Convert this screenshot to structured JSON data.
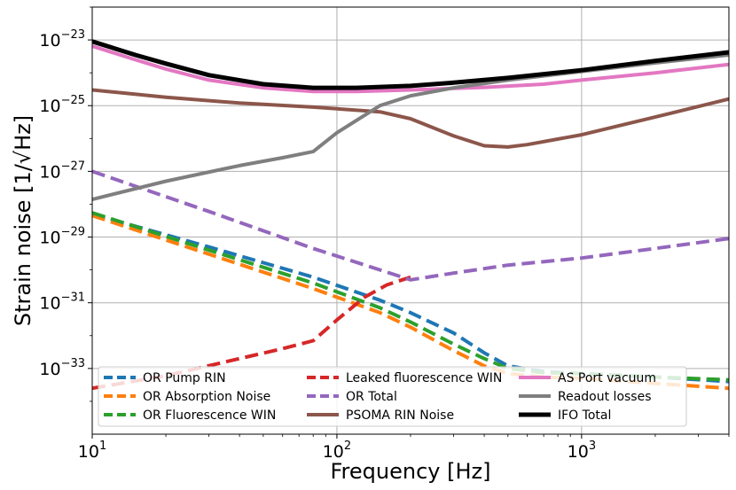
{
  "chart_data": {
    "type": "line",
    "xlabel": "Frequency [Hz]",
    "ylabel": "Strain noise [1/√Hz]",
    "xscale": "log",
    "yscale": "log",
    "xlim": [
      10,
      4000
    ],
    "ylim": [
      1e-35,
      1e-22
    ],
    "grid": true,
    "legend_position": "lower center",
    "xticks": [
      {
        "value": 10,
        "base": "10",
        "exp": "1"
      },
      {
        "value": 100,
        "base": "10",
        "exp": "2"
      },
      {
        "value": 1000,
        "base": "10",
        "exp": "3"
      }
    ],
    "yticks": [
      {
        "value": 1e-23,
        "base": "10",
        "exp": "−23"
      },
      {
        "value": 1e-25,
        "base": "10",
        "exp": "−25"
      },
      {
        "value": 1e-27,
        "base": "10",
        "exp": "−27"
      },
      {
        "value": 1e-29,
        "base": "10",
        "exp": "−29"
      },
      {
        "value": 1e-31,
        "base": "10",
        "exp": "−31"
      },
      {
        "value": 1e-33,
        "base": "10",
        "exp": "−33"
      }
    ],
    "series": [
      {
        "name": "OR Pump RIN",
        "color": "#1f77b4",
        "dashed": true,
        "x": [
          10,
          30,
          80,
          150,
          200,
          300,
          400,
          500,
          700,
          1000,
          2000,
          4000
        ],
        "y": [
          5e-29,
          5e-30,
          6e-31,
          1.2e-31,
          5e-32,
          1.2e-32,
          3e-33,
          1.2e-33,
          8e-34,
          7e-34,
          5.5e-34,
          4e-34
        ]
      },
      {
        "name": "OR Absorption Noise",
        "color": "#ff7f0e",
        "dashed": true,
        "x": [
          10,
          30,
          80,
          150,
          200,
          300,
          400,
          500,
          700,
          1000,
          2000,
          4000
        ],
        "y": [
          4.5e-29,
          3e-30,
          2.7e-31,
          5e-32,
          1.8e-32,
          3.5e-33,
          1.2e-33,
          7e-34,
          5.5e-34,
          5e-34,
          3.5e-34,
          2.5e-34
        ]
      },
      {
        "name": "OR Fluorescence WIN",
        "color": "#2ca02c",
        "dashed": true,
        "x": [
          10,
          30,
          80,
          150,
          200,
          300,
          400,
          500,
          700,
          1000,
          2000,
          4000
        ],
        "y": [
          5.5e-29,
          4e-30,
          4e-31,
          7e-32,
          2.6e-32,
          5.5e-33,
          2e-33,
          1e-33,
          7.5e-34,
          7e-34,
          5.5e-34,
          4.5e-34
        ]
      },
      {
        "name": "Leaked fluorescence WIN",
        "color": "#d62728",
        "dashed": true,
        "x": [
          10,
          20,
          40,
          60,
          80,
          100,
          130,
          160,
          200
        ],
        "y": [
          2.5e-34,
          6e-34,
          2e-33,
          4e-33,
          7e-33,
          3e-32,
          1.5e-31,
          3.5e-31,
          6e-31
        ]
      },
      {
        "name": "OR Total",
        "color": "#9467bd",
        "dashed": true,
        "x": [
          10,
          30,
          80,
          150,
          200,
          300,
          500,
          1000,
          2000,
          4000
        ],
        "y": [
          1e-27,
          6e-29,
          4.5e-30,
          1e-30,
          5e-31,
          8e-31,
          1.4e-30,
          2.3e-30,
          4.5e-30,
          9e-30
        ]
      },
      {
        "name": "PSOMA RIN Noise",
        "color": "#8c564b",
        "dashed": false,
        "x": [
          10,
          20,
          40,
          80,
          150,
          200,
          300,
          400,
          500,
          600,
          1000,
          2000,
          4000
        ],
        "y": [
          3e-25,
          1.8e-25,
          1.2e-25,
          9e-26,
          6.5e-26,
          4e-26,
          1.2e-26,
          6e-27,
          5.5e-27,
          6.5e-27,
          1.3e-26,
          4.5e-26,
          1.6e-25
        ]
      },
      {
        "name": "AS Port vacuum",
        "color": "#e377c2",
        "dashed": false,
        "x": [
          10,
          15,
          20,
          30,
          50,
          80,
          120,
          200,
          400,
          700,
          1000,
          2000,
          4000
        ],
        "y": [
          6.5e-24,
          2.5e-24,
          1.3e-24,
          6e-25,
          3.5e-25,
          2.7e-25,
          2.7e-25,
          3e-25,
          3.6e-25,
          4.5e-25,
          6e-25,
          1e-24,
          1.8e-24
        ]
      },
      {
        "name": "Readout losses",
        "color": "#7f7f7f",
        "dashed": false,
        "x": [
          10,
          20,
          40,
          60,
          80,
          100,
          150,
          200,
          300,
          500,
          1000,
          2000,
          4000
        ],
        "y": [
          1.4e-28,
          5e-28,
          1.5e-27,
          2.6e-27,
          4e-27,
          1.5e-26,
          1e-25,
          2e-25,
          3.5e-25,
          6e-25,
          1.1e-24,
          2e-24,
          3.5e-24
        ]
      },
      {
        "name": "IFO Total",
        "color": "#000000",
        "dashed": false,
        "x": [
          10,
          15,
          20,
          30,
          50,
          80,
          120,
          200,
          300,
          500,
          1000,
          2000,
          4000
        ],
        "y": [
          9e-24,
          3.5e-24,
          1.9e-24,
          8.5e-25,
          4.5e-25,
          3.5e-25,
          3.5e-25,
          4e-25,
          5e-25,
          7e-25,
          1.2e-24,
          2.3e-24,
          4.2e-24
        ]
      }
    ]
  }
}
